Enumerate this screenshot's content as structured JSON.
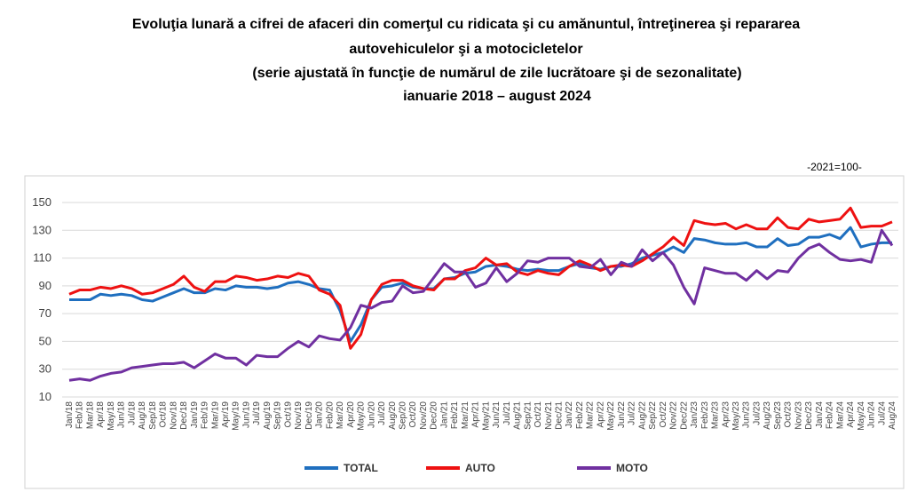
{
  "chart_data": {
    "type": "line",
    "title": [
      "Evoluţia lunară a cifrei de afaceri din comerţul cu ridicata şi cu amănuntul, întreţinerea şi repararea",
      "autovehiculelor şi a motocicletelor",
      "(serie ajustată în funcţie de numărul de zile lucrătoare şi de sezonalitate)",
      "ianuarie 2018 – august 2024"
    ],
    "annotation": "-2021=100-",
    "categories": [
      "Jan/18",
      "Feb/18",
      "Mar/18",
      "Apr/18",
      "May/18",
      "Jun/18",
      "Jul/18",
      "Aug/18",
      "Sep/18",
      "Oct/18",
      "Nov/18",
      "Dec/18",
      "Jan/19",
      "Feb/19",
      "Mar/19",
      "Apr/19",
      "May/19",
      "Jun/19",
      "Jul/19",
      "Aug/19",
      "Sep/19",
      "Oct/19",
      "Nov/19",
      "Dec/19",
      "Jan/20",
      "Feb/20",
      "Mar/20",
      "Apr/20",
      "May/20",
      "Jun/20",
      "Jul/20",
      "Aug/20",
      "Sep/20",
      "Oct/20",
      "Nov/20",
      "Dec/20",
      "Jan/21",
      "Feb/21",
      "Mar/21",
      "Apr/21",
      "May/21",
      "Jun/21",
      "Jul/21",
      "Aug/21",
      "Sep/21",
      "Oct/21",
      "Nov/21",
      "Dec/21",
      "Jan/22",
      "Feb/22",
      "Mar/22",
      "Apr/22",
      "May/22",
      "Jun/22",
      "Jul/22",
      "Aug/22",
      "Sep/22",
      "Oct/22",
      "Nov/22",
      "Dec/22",
      "Jan/23",
      "Feb/23",
      "Mar/23",
      "Apr/23",
      "May/23",
      "Jun/23",
      "Jul/23",
      "Aug/23",
      "Sep/23",
      "Oct/23",
      "Nov/23",
      "Dec/23",
      "Jan/24",
      "Feb/24",
      "Mar/24",
      "Apr/24",
      "May/24",
      "Jun/24",
      "Jul/24",
      "Aug/24"
    ],
    "series": [
      {
        "name": "TOTAL",
        "color": "#1f6fbf",
        "values": [
          80,
          80,
          80,
          84,
          83,
          84,
          83,
          80,
          79,
          82,
          85,
          88,
          85,
          85,
          88,
          87,
          90,
          89,
          89,
          88,
          89,
          92,
          93,
          91,
          88,
          87,
          72,
          50,
          62,
          80,
          89,
          90,
          92,
          89,
          88,
          88,
          95,
          96,
          99,
          100,
          104,
          105,
          104,
          102,
          101,
          102,
          101,
          101,
          104,
          106,
          103,
          102,
          104,
          104,
          106,
          110,
          112,
          114,
          118,
          114,
          124,
          123,
          121,
          120,
          120,
          121,
          118,
          118,
          124,
          119,
          120,
          125,
          125,
          127,
          124,
          132,
          118,
          120,
          121,
          121
        ]
      },
      {
        "name": "AUTO",
        "color": "#ee1111",
        "values": [
          84,
          87,
          87,
          89,
          88,
          90,
          88,
          84,
          85,
          88,
          91,
          97,
          89,
          86,
          93,
          93,
          97,
          96,
          94,
          95,
          97,
          96,
          99,
          97,
          87,
          84,
          76,
          45,
          55,
          80,
          91,
          94,
          94,
          90,
          88,
          87,
          95,
          95,
          101,
          103,
          110,
          105,
          106,
          100,
          98,
          101,
          99,
          98,
          104,
          108,
          105,
          101,
          104,
          105,
          104,
          108,
          113,
          118,
          125,
          119,
          137,
          135,
          134,
          135,
          131,
          134,
          131,
          131,
          139,
          132,
          131,
          138,
          136,
          137,
          138,
          146,
          132,
          133,
          133,
          136
        ]
      },
      {
        "name": "MOTO",
        "color": "#7030a0",
        "values": [
          22,
          23,
          22,
          25,
          27,
          28,
          31,
          32,
          33,
          34,
          34,
          35,
          31,
          36,
          41,
          38,
          38,
          33,
          40,
          39,
          39,
          45,
          50,
          46,
          54,
          52,
          51,
          60,
          76,
          74,
          78,
          79,
          90,
          85,
          86,
          96,
          106,
          100,
          100,
          89,
          92,
          103,
          93,
          99,
          108,
          107,
          110,
          110,
          110,
          104,
          103,
          109,
          98,
          107,
          104,
          116,
          108,
          114,
          105,
          89,
          77,
          103,
          101,
          99,
          99,
          94,
          101,
          95,
          101,
          100,
          110,
          117,
          120,
          114,
          109,
          108,
          109,
          107,
          130,
          119
        ]
      }
    ],
    "ylim": [
      10,
      150
    ],
    "yticks": [
      10,
      30,
      50,
      70,
      90,
      110,
      130,
      150
    ],
    "grid": true,
    "legend": "bottom"
  }
}
